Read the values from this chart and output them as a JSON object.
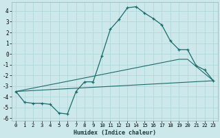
{
  "xlabel": "Humidex (Indice chaleur)",
  "xlim": [
    -0.5,
    23.5
  ],
  "ylim": [
    -6.2,
    4.8
  ],
  "background_color": "#cce8ea",
  "grid_color": "#b0d8db",
  "line_color": "#1a6b6b",
  "yticks": [
    -6,
    -5,
    -4,
    -3,
    -2,
    -1,
    0,
    1,
    2,
    3,
    4
  ],
  "xticks": [
    0,
    1,
    2,
    3,
    4,
    5,
    6,
    7,
    8,
    9,
    10,
    11,
    12,
    13,
    14,
    15,
    16,
    17,
    18,
    19,
    20,
    21,
    22,
    23
  ],
  "series0_x": [
    0,
    1,
    2,
    3,
    4,
    5,
    6,
    7,
    8,
    9,
    10,
    11,
    12,
    13,
    14,
    15,
    16,
    17,
    18,
    19,
    20,
    21,
    22,
    23
  ],
  "series0_y": [
    -3.5,
    -4.5,
    -4.6,
    -4.6,
    -4.7,
    -5.5,
    -5.6,
    -3.5,
    -2.6,
    -2.6,
    -0.2,
    2.3,
    3.2,
    4.3,
    4.4,
    3.8,
    3.3,
    2.7,
    1.2,
    0.4,
    0.4,
    -1.1,
    -1.5,
    -2.5
  ],
  "series1_x": [
    0,
    23
  ],
  "series1_y": [
    -3.5,
    -2.5
  ],
  "series2_x": [
    0,
    19,
    20,
    23
  ],
  "series2_y": [
    -3.5,
    -0.5,
    -0.5,
    -2.5
  ],
  "xlabel_fontsize": 6.0,
  "tick_fontsize": 5.2
}
